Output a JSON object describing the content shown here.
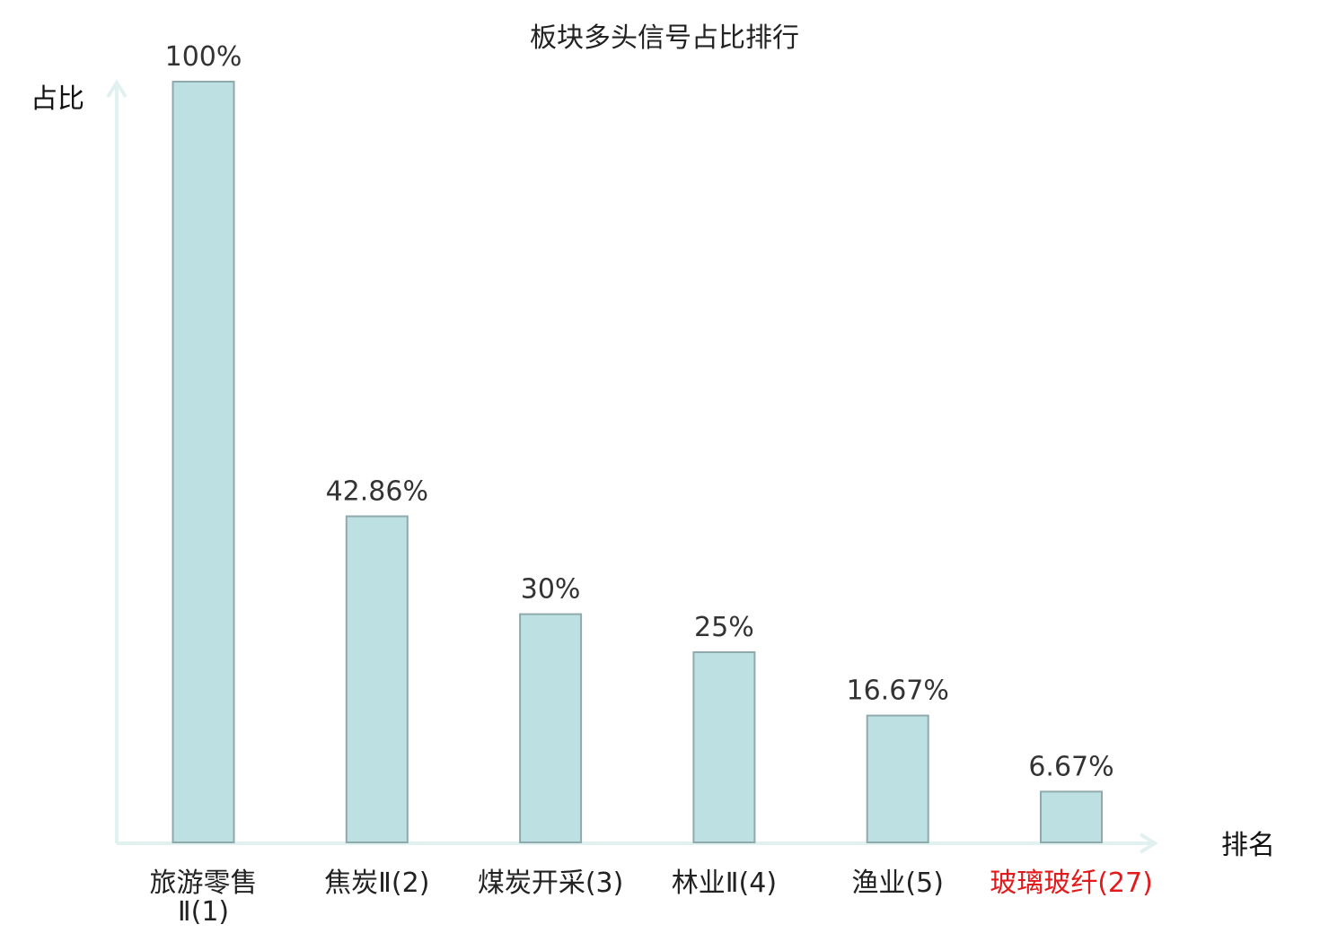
{
  "chart_data": {
    "type": "bar",
    "title": "板块多头信号占比排行",
    "ylabel": "占比",
    "xlabel": "排名",
    "ylim": [
      0,
      100
    ],
    "categories": [
      [
        "旅游零售",
        "Ⅱ(1)"
      ],
      [
        "焦炭Ⅱ(2)"
      ],
      [
        "煤炭开采(3)"
      ],
      [
        "林业Ⅱ(4)"
      ],
      [
        "渔业(5)"
      ],
      [
        "玻璃玻纤(27)"
      ]
    ],
    "values": [
      100,
      42.86,
      30,
      25,
      16.67,
      6.67
    ],
    "value_labels": [
      "100%",
      "42.86%",
      "30%",
      "25%",
      "16.67%",
      "6.67%"
    ],
    "highlight_index": 5,
    "grid": false,
    "colors": {
      "bar_fill": "#bde0e2",
      "bar_stroke": "#8fa9ad",
      "axis": "#e0f1ef",
      "highlight_label": "#e31a1c",
      "label": "#222222"
    }
  }
}
